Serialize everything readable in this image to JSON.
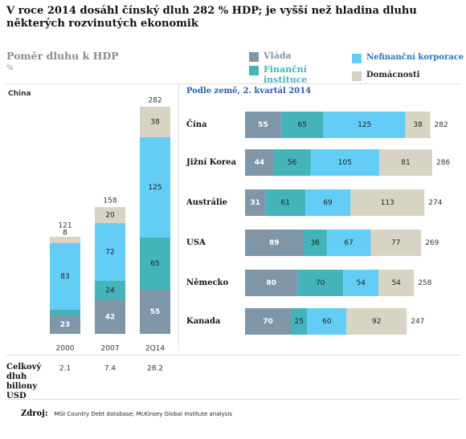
{
  "title": "V roce 2014 dosáhl čínský dluh 282 % HDP; je vyšší než hladina dluhu některých rozvinutých ekonomik",
  "subtitle": "Poměr dluhu k HDP",
  "unit": "%",
  "legend": [
    {
      "label": "Vláda",
      "color": "#7f96a8"
    },
    {
      "label": "Finanční instituce",
      "color": "#43b4b9"
    },
    {
      "label": "Nefinanční korporace",
      "color": "#63cdf5"
    },
    {
      "label": "Domácnosti",
      "color": "#d8d4c3"
    }
  ],
  "footer": {
    "total_debt_label": "Celkový dluh biliony USD",
    "source_label": "Zdroj:",
    "source_text": "MGI Country Debt database; McKinsey Global Institute analysis"
  },
  "chart_data": [
    {
      "type": "bar",
      "stacked": true,
      "orientation": "vertical",
      "panel_label": "China",
      "categories": [
        "2000",
        "2007",
        "2Q14"
      ],
      "series": [
        {
          "name": "Vláda",
          "values": [
            23,
            42,
            55
          ]
        },
        {
          "name": "Finanční instituce",
          "values": [
            7,
            24,
            65
          ]
        },
        {
          "name": "Nefinanční korporace",
          "values": [
            83,
            72,
            125
          ]
        },
        {
          "name": "Domácnosti",
          "values": [
            8,
            20,
            38
          ]
        }
      ],
      "totals": [
        121,
        158,
        282
      ],
      "total_debt_usd_trillions": [
        "2.1",
        "7.4",
        "28.2"
      ],
      "ylim": [
        0,
        282
      ]
    },
    {
      "type": "bar",
      "stacked": true,
      "orientation": "horizontal",
      "title": "Podle země, 2. kvartál 2014",
      "categories": [
        "Čína",
        "Jižní Korea",
        "Austrálie",
        "USA",
        "Německo",
        "Kanada"
      ],
      "series": [
        {
          "name": "Vláda",
          "values": [
            55,
            44,
            31,
            89,
            80,
            70
          ]
        },
        {
          "name": "Finanční instituce",
          "values": [
            65,
            56,
            61,
            36,
            70,
            25
          ]
        },
        {
          "name": "Nefinanční korporace",
          "values": [
            125,
            105,
            69,
            67,
            54,
            60
          ]
        },
        {
          "name": "Domácnosti",
          "values": [
            38,
            81,
            113,
            77,
            54,
            92
          ]
        }
      ],
      "totals": [
        282,
        286,
        274,
        269,
        258,
        247
      ],
      "xlim": [
        0,
        286
      ]
    }
  ]
}
